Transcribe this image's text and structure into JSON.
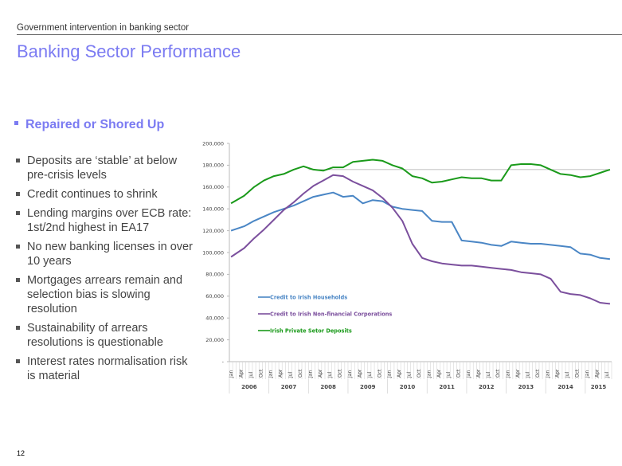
{
  "header": {
    "subtitle": "Government intervention in banking sector",
    "title": "Banking Sector Performance"
  },
  "content": {
    "heading": "Repaired or Shored Up",
    "bullets": [
      "Deposits are ‘stable’ at below pre-crisis levels",
      "Credit continues to shrink",
      "Lending margins over ECB rate: 1st/2nd highest in EA17",
      "No new banking licenses in over 10 years",
      "Mortgages arrears remain and selection bias is slowing resolution",
      "Sustainability of arrears resolutions is questionable",
      "Interest rates normalisation risk is material"
    ]
  },
  "footer": {
    "page_number": "12"
  },
  "colors": {
    "accent": "#7b7bf2",
    "households": "#4a86c5",
    "corporations": "#7b4f9d",
    "deposits": "#1a9a1a",
    "reference_line": "#aaaaaa"
  },
  "chart_data": {
    "type": "line",
    "title": "",
    "xlabel": "",
    "ylabel": "",
    "ylim": [
      0,
      200000
    ],
    "y_ticks": [
      "-",
      "20,000",
      "40,000",
      "60,000",
      "80,000",
      "100,000",
      "120,000",
      "140,000",
      "160,000",
      "180,000",
      "200,000"
    ],
    "y_tick_values": [
      0,
      20000,
      40000,
      60000,
      80000,
      100000,
      120000,
      140000,
      160000,
      180000,
      200000
    ],
    "grid": false,
    "legend_position": "inside-lower-left",
    "x_month_labels": [
      "Jan",
      "Apr",
      "Jul",
      "Oct"
    ],
    "x_years": [
      "2006",
      "2007",
      "2008",
      "2009",
      "2010",
      "2011",
      "2012",
      "2013",
      "2014",
      "2015"
    ],
    "x_start": "2006-01",
    "x_end": "2015-08",
    "reference_line": {
      "value": 176000,
      "from": "2008-01",
      "to": "2015-08"
    },
    "x_quarters": [
      "2006-Q1",
      "2006-Q2",
      "2006-Q3",
      "2006-Q4",
      "2007-Q1",
      "2007-Q2",
      "2007-Q3",
      "2007-Q4",
      "2008-Q1",
      "2008-Q2",
      "2008-Q3",
      "2008-Q4",
      "2009-Q1",
      "2009-Q2",
      "2009-Q3",
      "2009-Q4",
      "2010-Q1",
      "2010-Q2",
      "2010-Q3",
      "2010-Q4",
      "2011-Q1",
      "2011-Q2",
      "2011-Q3",
      "2011-Q4",
      "2012-Q1",
      "2012-Q2",
      "2012-Q3",
      "2012-Q4",
      "2013-Q1",
      "2013-Q2",
      "2013-Q3",
      "2013-Q4",
      "2014-Q1",
      "2014-Q2",
      "2014-Q3",
      "2014-Q4",
      "2015-Q1",
      "2015-Q2",
      "2015-Q3"
    ],
    "series": [
      {
        "name": "Credit to Irish Households",
        "color": "#4a86c5",
        "values": [
          120000,
          124000,
          129000,
          133000,
          137000,
          140000,
          143000,
          147000,
          151000,
          153000,
          155000,
          151000,
          152000,
          145000,
          148000,
          147000,
          142000,
          140000,
          139000,
          138000,
          129000,
          128000,
          128000,
          111000,
          110000,
          109000,
          107000,
          106000,
          110000,
          109000,
          108000,
          108000,
          107000,
          106000,
          105000,
          99000,
          98000,
          95000,
          94000
        ]
      },
      {
        "name": "Credit to Irish Non-financial Corporations",
        "color": "#7b4f9d",
        "values": [
          96000,
          104000,
          113000,
          121000,
          130000,
          139000,
          146000,
          154000,
          161000,
          166000,
          171000,
          170000,
          165000,
          161000,
          157000,
          150000,
          141000,
          129000,
          108000,
          95000,
          92000,
          90000,
          89000,
          88000,
          88000,
          87000,
          86000,
          85000,
          84000,
          82000,
          81000,
          80000,
          76000,
          64000,
          62000,
          61000,
          58000,
          54000,
          53000
        ]
      },
      {
        "name": "Irish Private Setor Deposits",
        "color": "#1a9a1a",
        "values": [
          145000,
          152000,
          160000,
          166000,
          170000,
          172000,
          176000,
          179000,
          176000,
          175000,
          178000,
          178000,
          183000,
          184000,
          185000,
          184000,
          180000,
          177000,
          170000,
          168000,
          164000,
          165000,
          167000,
          169000,
          168000,
          168000,
          166000,
          166000,
          180000,
          181000,
          181000,
          180000,
          176000,
          172000,
          171000,
          169000,
          170000,
          173000,
          176000
        ]
      }
    ]
  }
}
